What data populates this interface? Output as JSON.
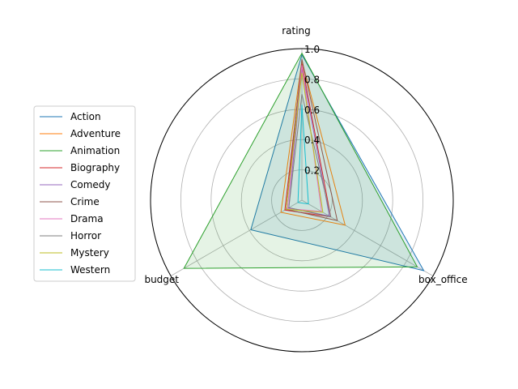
{
  "chart_data": {
    "type": "radar",
    "axes": [
      "rating",
      "box_office",
      "budget"
    ],
    "radial_ticks": [
      "0.2",
      "0.4",
      "0.6",
      "0.8",
      "1.0"
    ],
    "radial_tick_values": [
      0.2,
      0.4,
      0.6,
      0.8,
      1.0
    ],
    "rlim": [
      0,
      1.0
    ],
    "grid": true,
    "legend_position": "center-left",
    "series": [
      {
        "name": "Action",
        "color": "#1f77b4",
        "values": [
          0.96,
          0.93,
          0.39
        ],
        "fill": true
      },
      {
        "name": "Adventure",
        "color": "#ff7f0e",
        "values": [
          0.92,
          0.33,
          0.16
        ],
        "fill": false
      },
      {
        "name": "Animation",
        "color": "#2ca02c",
        "values": [
          0.97,
          0.88,
          0.9
        ],
        "fill": true
      },
      {
        "name": "Biography",
        "color": "#d62728",
        "values": [
          0.9,
          0.22,
          0.13
        ],
        "fill": false
      },
      {
        "name": "Comedy",
        "color": "#9467bd",
        "values": [
          0.87,
          0.21,
          0.1
        ],
        "fill": false
      },
      {
        "name": "Crime",
        "color": "#8c564b",
        "values": [
          0.93,
          0.27,
          0.12
        ],
        "fill": false
      },
      {
        "name": "Drama",
        "color": "#e377c2",
        "values": [
          0.89,
          0.15,
          0.11
        ],
        "fill": false
      },
      {
        "name": "Horror",
        "color": "#7f7f7f",
        "values": [
          0.7,
          0.22,
          0.1
        ],
        "fill": false
      },
      {
        "name": "Mystery",
        "color": "#bcbd22",
        "values": [
          0.84,
          0.16,
          0.12
        ],
        "fill": false
      },
      {
        "name": "Western",
        "color": "#17becf",
        "values": [
          0.63,
          0.05,
          0.03
        ],
        "fill": false
      }
    ]
  }
}
